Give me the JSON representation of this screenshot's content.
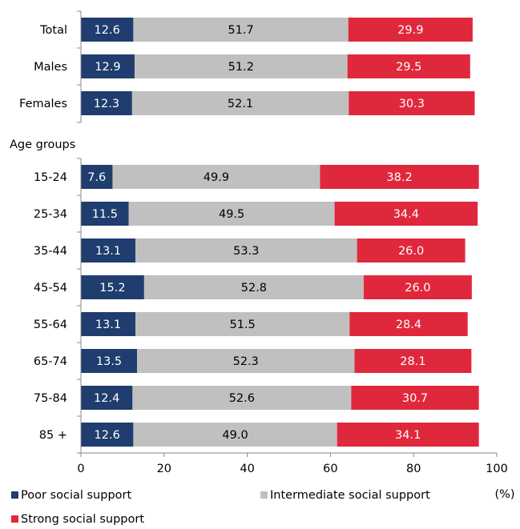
{
  "chart_data": {
    "type": "bar",
    "orientation": "horizontal",
    "stacked": true,
    "categories": [
      "Total",
      "Males",
      "Females",
      "15-24",
      "25-34",
      "35-44",
      "45-54",
      "55-64",
      "65-74",
      "75-84",
      "85 +"
    ],
    "group_label": "Age groups",
    "series": [
      {
        "name": "Poor social support",
        "color": "#1f3d6e",
        "text_color": "#ffffff",
        "values": [
          12.6,
          12.9,
          12.3,
          7.6,
          11.5,
          13.1,
          15.2,
          13.1,
          13.5,
          12.4,
          12.6
        ]
      },
      {
        "name": "Intermediate social support",
        "color": "#c0c0c0",
        "text_color": "#000000",
        "values": [
          51.7,
          51.2,
          52.1,
          49.9,
          49.5,
          53.3,
          52.8,
          51.5,
          52.3,
          52.6,
          49.0
        ]
      },
      {
        "name": "Strong social support",
        "color": "#e0283c",
        "text_color": "#ffffff",
        "values": [
          29.9,
          29.5,
          30.3,
          38.2,
          34.4,
          26.0,
          26.0,
          28.4,
          28.1,
          30.7,
          34.1
        ]
      }
    ],
    "value_labels": [
      [
        "12.6",
        "12.9",
        "12.3",
        "7.6",
        "11.5",
        "13.1",
        "15.2",
        "13.1",
        "13.5",
        "12.4",
        "12.6"
      ],
      [
        "51.7",
        "51.2",
        "52.1",
        "49.9",
        "49.5",
        "53.3",
        "52.8",
        "51.5",
        "52.3",
        "52.6",
        "49.0"
      ],
      [
        "29.9",
        "29.5",
        "30.3",
        "38.2",
        "34.4",
        "26.0",
        "26.0",
        "28.4",
        "28.1",
        "30.7",
        "34.1"
      ]
    ],
    "x_ticks": [
      "0",
      "20",
      "40",
      "60",
      "80",
      "100"
    ],
    "xlim": [
      0,
      100
    ],
    "xlabel": "(%)",
    "ylabel": "",
    "title": "",
    "grid": false,
    "legend": "bottom"
  }
}
